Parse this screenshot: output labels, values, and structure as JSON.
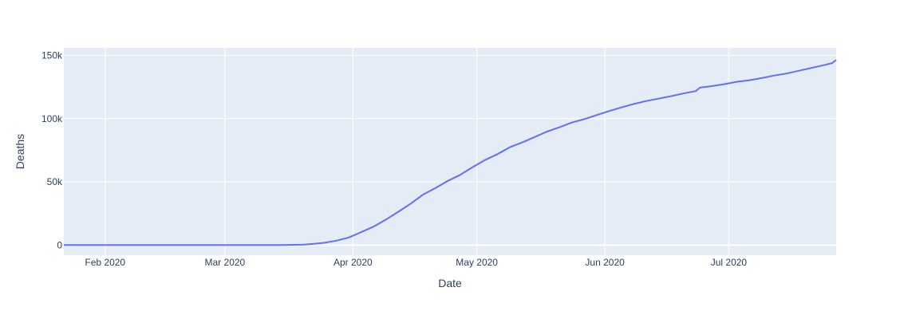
{
  "chart_data": {
    "type": "line",
    "title": "",
    "xlabel": "Date",
    "ylabel": "Deaths",
    "x_type": "date",
    "xlim": [
      "2020-01-22",
      "2020-07-27"
    ],
    "ylim": [
      -8000,
      156000
    ],
    "x_ticks": [
      {
        "value": "2020-02-01",
        "label": "Feb 2020"
      },
      {
        "value": "2020-03-01",
        "label": "Mar 2020"
      },
      {
        "value": "2020-04-01",
        "label": "Apr 2020"
      },
      {
        "value": "2020-05-01",
        "label": "May 2020"
      },
      {
        "value": "2020-06-01",
        "label": "Jun 2020"
      },
      {
        "value": "2020-07-01",
        "label": "Jul 2020"
      }
    ],
    "y_ticks": [
      {
        "value": 0,
        "label": "0"
      },
      {
        "value": 50000,
        "label": "50k"
      },
      {
        "value": 100000,
        "label": "100k"
      },
      {
        "value": 150000,
        "label": "150k"
      }
    ],
    "grid": true,
    "legend": "none",
    "colors": {
      "line": "#636efa",
      "plot_bg": "#e5ecf6",
      "grid": "#ffffff",
      "text": "#2a3f5f"
    },
    "series": [
      {
        "x": [
          "2020-01-22",
          "2020-02-29",
          "2020-03-15",
          "2020-03-20",
          "2020-03-22",
          "2020-03-25",
          "2020-03-28",
          "2020-03-31",
          "2020-04-03",
          "2020-04-06",
          "2020-04-09",
          "2020-04-12",
          "2020-04-15",
          "2020-04-18",
          "2020-04-21",
          "2020-04-24",
          "2020-04-27",
          "2020-04-30",
          "2020-05-03",
          "2020-05-06",
          "2020-05-09",
          "2020-05-12",
          "2020-05-15",
          "2020-05-18",
          "2020-05-21",
          "2020-05-24",
          "2020-05-27",
          "2020-05-30",
          "2020-06-02",
          "2020-06-05",
          "2020-06-08",
          "2020-06-11",
          "2020-06-14",
          "2020-06-17",
          "2020-06-20",
          "2020-06-23",
          "2020-06-24",
          "2020-06-27",
          "2020-06-30",
          "2020-07-03",
          "2020-07-06",
          "2020-07-09",
          "2020-07-12",
          "2020-07-15",
          "2020-07-18",
          "2020-07-21",
          "2020-07-24",
          "2020-07-26",
          "2020-07-27"
        ],
        "y": [
          0,
          60,
          100,
          300,
          800,
          1800,
          3500,
          6000,
          10200,
          14600,
          20200,
          26400,
          32800,
          40000,
          45200,
          50800,
          55600,
          61700,
          67300,
          71900,
          77400,
          81200,
          85500,
          89800,
          93200,
          96900,
          99600,
          102800,
          106000,
          108900,
          111600,
          113900,
          115800,
          117800,
          119900,
          121800,
          124500,
          125800,
          127300,
          129200,
          130400,
          132100,
          134100,
          135700,
          137900,
          140100,
          142300,
          143900,
          146500
        ]
      }
    ]
  }
}
